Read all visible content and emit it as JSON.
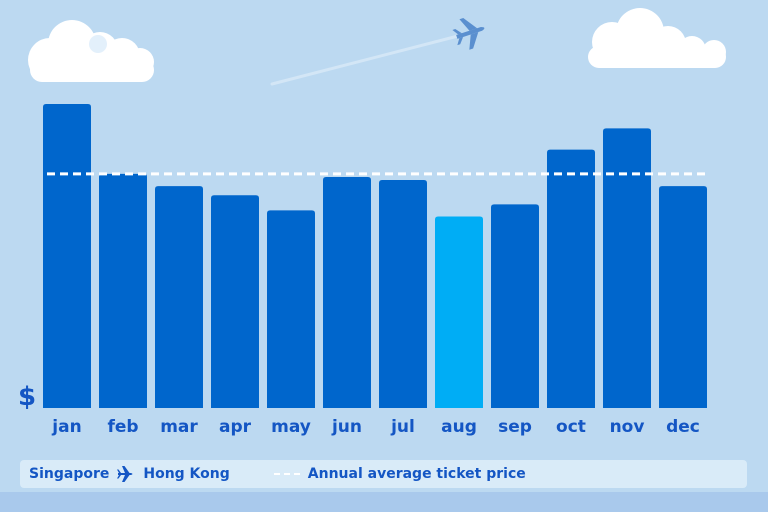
{
  "colors": {
    "sky": "#bcd9f1",
    "bar": "#0066cc",
    "bar_highlight": "#00adf5",
    "average_line": "#ffffff",
    "label": "#1456c4"
  },
  "decorations": [
    "cloud-left",
    "cloud-right",
    "airplane-icon",
    "contrail"
  ],
  "chart_data": {
    "type": "bar",
    "categories": [
      "jan",
      "feb",
      "mar",
      "apr",
      "may",
      "jun",
      "jul",
      "aug",
      "sep",
      "oct",
      "nov",
      "dec"
    ],
    "values": [
      100,
      77,
      73,
      70,
      65,
      76,
      75,
      63,
      67,
      85,
      92,
      73
    ],
    "highlight_index": 7,
    "average": 77,
    "ylabel": "$",
    "ylim": [
      0,
      100
    ],
    "grid": false,
    "legend_position": "bottom"
  },
  "legend": {
    "origin": "Singapore",
    "destination": "Hong Kong",
    "route_icon": "airplane-icon",
    "average_label": "Annual average ticket price"
  }
}
